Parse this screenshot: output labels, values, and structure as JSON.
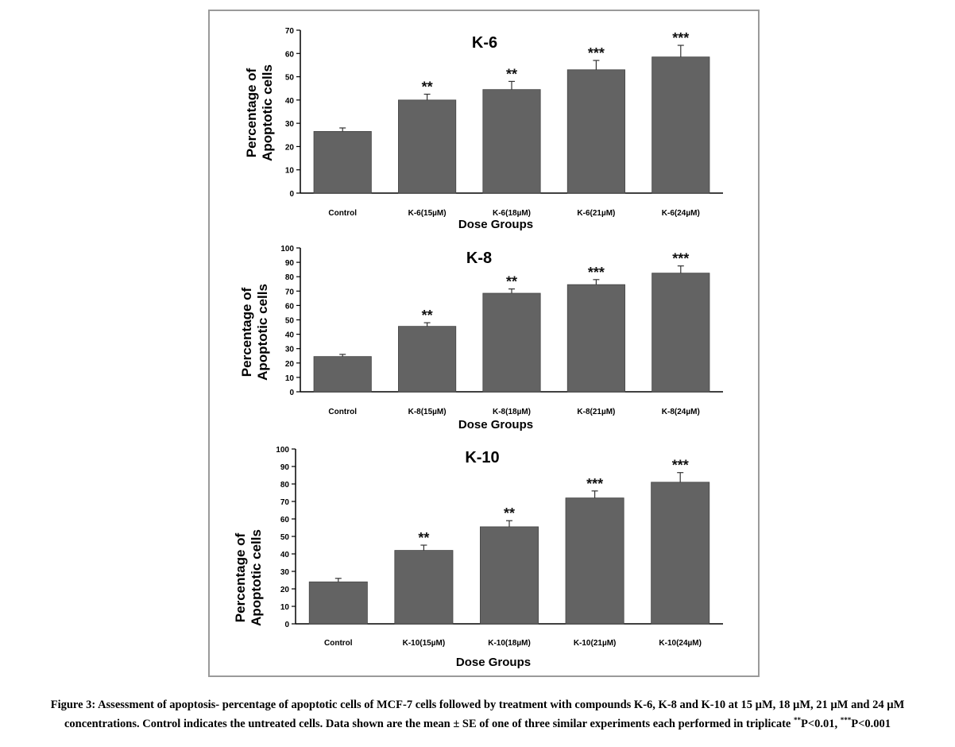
{
  "chart_data": [
    {
      "type": "bar",
      "title": "K-6",
      "xlabel": "Dose Groups",
      "ylabel_line1": "Percentage of",
      "ylabel_line2": "Apoptotic cells",
      "categories": [
        "Control",
        "K-6(15µM)",
        "K-6(18µM)",
        "K-6(21µM)",
        "K-6(24µM)"
      ],
      "values": [
        26.5,
        40,
        44.5,
        53,
        58.5
      ],
      "errors": [
        1.5,
        2.5,
        3.5,
        4,
        5
      ],
      "significance": [
        "",
        "**",
        "**",
        "***",
        "***"
      ],
      "ylim": [
        0,
        70
      ],
      "yticks": [
        0,
        10,
        20,
        30,
        40,
        50,
        60,
        70
      ],
      "bar_color": "#636363"
    },
    {
      "type": "bar",
      "title": "K-8",
      "xlabel": "Dose Groups",
      "ylabel_line1": "Percentage of",
      "ylabel_line2": "Apoptotic cells",
      "categories": [
        "Control",
        "K-8(15µM)",
        "K-8(18µM)",
        "K-8(21µM)",
        "K-8(24µM)"
      ],
      "values": [
        24.5,
        45.5,
        68.5,
        74.5,
        82.5
      ],
      "errors": [
        1.5,
        2.5,
        3,
        3.5,
        5
      ],
      "significance": [
        "",
        "**",
        "**",
        "***",
        "***"
      ],
      "ylim": [
        0,
        100
      ],
      "yticks": [
        0,
        10,
        20,
        30,
        40,
        50,
        60,
        70,
        80,
        90,
        100
      ],
      "bar_color": "#636363"
    },
    {
      "type": "bar",
      "title": "K-10",
      "xlabel": "Dose Groups",
      "ylabel_line1": "Percentage of",
      "ylabel_line2": "Apoptotic cells",
      "categories": [
        "Control",
        "K-10(15µM)",
        "K-10(18µM)",
        "K-10(21µM)",
        "K-10(24µM)"
      ],
      "values": [
        24,
        42,
        55.5,
        72,
        81
      ],
      "errors": [
        2,
        3,
        3.5,
        4,
        5.5
      ],
      "significance": [
        "",
        "**",
        "**",
        "***",
        "***"
      ],
      "ylim": [
        0,
        100
      ],
      "yticks": [
        0,
        10,
        20,
        30,
        40,
        50,
        60,
        70,
        80,
        90,
        100
      ],
      "bar_color": "#636363"
    }
  ],
  "caption": {
    "part1": "Figure 3: Assessment of apoptosis- percentage of apoptotic cells of MCF-7 cells followed by treatment with compounds K-6, K-8 and K-10 at 15 µM, 18 µM, 21 µM and 24 µM concentrations. Control indicates the untreated cells. Data shown are the mean ± SE of one of three similar experiments each performed in triplicate ",
    "sup1": "**",
    "p1": "P<0.01, ",
    "sup2": "***",
    "p2": "P<0.001"
  }
}
